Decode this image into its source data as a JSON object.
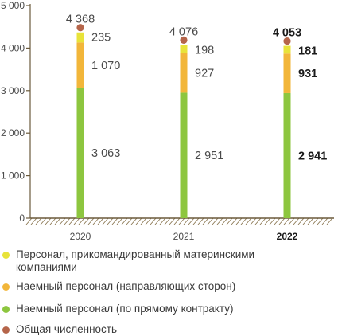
{
  "chart_data": {
    "type": "bar",
    "stacked": true,
    "categories": [
      "2020",
      "2021",
      "2022"
    ],
    "highlight_category": "2022",
    "ylim": [
      0,
      5000
    ],
    "yticks": [
      "0",
      "1 000",
      "2 000",
      "3 000",
      "4 000",
      "5 000"
    ],
    "grid": false,
    "legend_position": "bottom",
    "series": [
      {
        "name": "Наемный персонал (по прямому контракту)",
        "color": "#8dc63f",
        "values": [
          3063,
          2951,
          2941
        ],
        "labels": [
          "3 063",
          "2 951",
          "2 941"
        ]
      },
      {
        "name": "Наемный персонал (направляющих сторон)",
        "color": "#f2b63a",
        "values": [
          1070,
          927,
          931
        ],
        "labels": [
          "1 070",
          "927",
          "931"
        ]
      },
      {
        "name": "Персонал, прикомандированный материнскими компаниями",
        "color": "#e8e33a",
        "values": [
          235,
          198,
          181
        ],
        "labels": [
          "235",
          "198",
          "181"
        ]
      }
    ],
    "total": {
      "name": "Общая численность",
      "color": "#b5654a",
      "values": [
        4368,
        4076,
        4053
      ],
      "labels": [
        "4 368",
        "4 076",
        "4 053"
      ]
    }
  },
  "legend": [
    {
      "color": "#e8e33a",
      "label_lines": [
        "Персонал, прикомандированный материнскими",
        "компаниями"
      ]
    },
    {
      "color": "#f2b63a",
      "label_lines": [
        "Наемный персонал (направляющих сторон)"
      ]
    },
    {
      "color": "#8dc63f",
      "label_lines": [
        "Наемный персонал (по прямому контракту)"
      ]
    },
    {
      "color": "#b5654a",
      "label_lines": [
        "Общая численность"
      ]
    }
  ]
}
